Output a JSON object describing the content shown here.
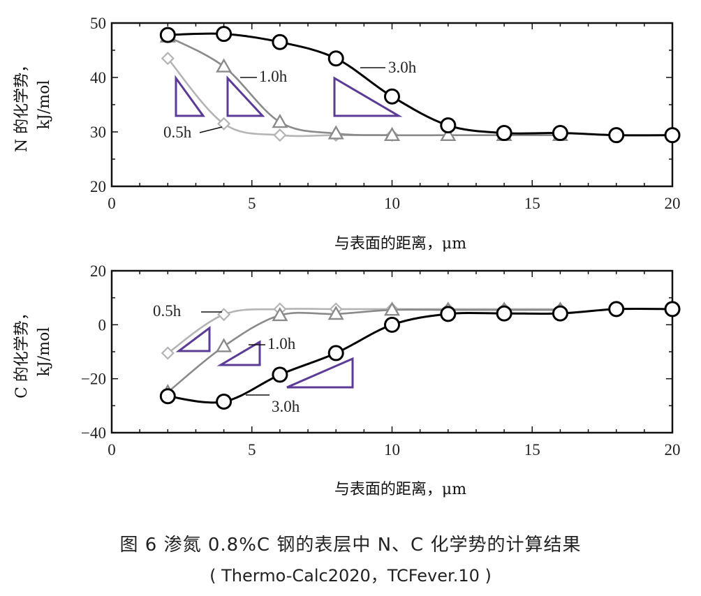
{
  "caption": {
    "title": "图 6   渗氮 0.8%C 钢的表层中 N、C 化学势的计算结果",
    "subtitle": "( Thermo-Calc2020，TCFever.10 )"
  },
  "colors": {
    "series_3h": "#000000",
    "series_1h": "#8a8a8a",
    "series_05h": "#b4b4b4",
    "slope_triangle": "#5b3b96"
  },
  "chart_data": [
    {
      "type": "line",
      "ylabel_line1": "N 的化学势，",
      "ylabel_line2": "kJ/mol",
      "xlabel": "与表面的距离，μm",
      "xlim": [
        0,
        20
      ],
      "ylim": [
        20,
        50
      ],
      "xticks": [
        "0",
        "5",
        "10",
        "15",
        "20"
      ],
      "yticks": [
        "20",
        "30",
        "40",
        "50"
      ],
      "grid": false,
      "series": [
        {
          "name": "3.0h",
          "marker": "circle",
          "color": "#000000",
          "x": [
            2,
            4,
            6,
            8,
            10,
            12,
            14,
            16,
            18,
            20
          ],
          "y": [
            47.8,
            48.0,
            46.5,
            43.5,
            36.5,
            31.2,
            29.8,
            29.8,
            29.4,
            29.4
          ]
        },
        {
          "name": "1.0h",
          "marker": "triangle",
          "color": "#8a8a8a",
          "x": [
            2,
            4,
            6,
            8,
            10,
            12,
            14,
            16
          ],
          "y": [
            47.5,
            42.0,
            31.8,
            29.7,
            29.4,
            29.4,
            29.4,
            29.4
          ]
        },
        {
          "name": "0.5h",
          "marker": "diamond",
          "color": "#b4b4b4",
          "x": [
            2,
            4,
            6,
            8,
            10
          ],
          "y": [
            43.5,
            31.5,
            29.4,
            29.4,
            29.4
          ]
        }
      ]
    },
    {
      "type": "line",
      "ylabel_line1": "C 的化学势，",
      "ylabel_line2": "kJ/mol",
      "xlabel": "与表面的距离，μm",
      "xlim": [
        0,
        20
      ],
      "ylim": [
        -40,
        20
      ],
      "xticks": [
        "0",
        "5",
        "10",
        "15",
        "20"
      ],
      "yticks": [
        "-40",
        "-20",
        "0",
        "20"
      ],
      "grid": false,
      "series": [
        {
          "name": "3.0h",
          "marker": "circle",
          "color": "#000000",
          "x": [
            2,
            4,
            6,
            8,
            10,
            12,
            14,
            16,
            18,
            20
          ],
          "y": [
            -26.5,
            -28.5,
            -18.5,
            -10.5,
            0.0,
            4.0,
            4.2,
            4.2,
            5.8,
            5.8
          ]
        },
        {
          "name": "1.0h",
          "marker": "triangle",
          "color": "#8a8a8a",
          "x": [
            2,
            4,
            6,
            8,
            10,
            12,
            14,
            16
          ],
          "y": [
            -25.0,
            -8.0,
            3.5,
            4.0,
            5.5,
            5.5,
            5.5,
            5.5
          ]
        },
        {
          "name": "0.5h",
          "marker": "diamond",
          "color": "#b4b4b4",
          "x": [
            2,
            4,
            6,
            8,
            10,
            12,
            14,
            16
          ],
          "y": [
            -10.5,
            3.8,
            5.8,
            5.8,
            5.8,
            5.8,
            5.8,
            5.8
          ]
        }
      ]
    }
  ]
}
